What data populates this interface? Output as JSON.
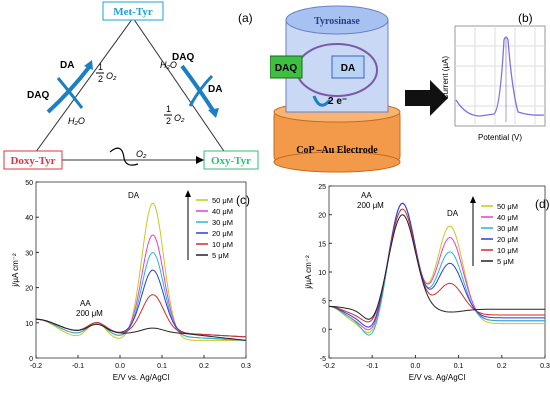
{
  "panel_a": {
    "label": "(a)",
    "met": "Met-Tyr",
    "doxy": "Doxy-Tyr",
    "oxy": "Oxy-Tyr",
    "left_da": "DA",
    "left_daq": "DAQ",
    "left_h2o": "H₂O",
    "right_h2o": "H₂O",
    "right_daq": "DAQ",
    "right_da": "DA",
    "half": "1",
    "half_den": "2",
    "o2": "O₂",
    "bottom_o2": "O₂",
    "colors": {
      "met": "#1aa3d9",
      "doxy": "#e0343d",
      "oxy": "#2bbf73",
      "arrow": "#1b7fc4"
    }
  },
  "panel_b": {
    "label": "(b)",
    "tyrosinase": "Tyrosinase",
    "daq": "DAQ",
    "da": "DA",
    "electrons": "2 e⁻",
    "electrode": "CoP –Au Electrode",
    "ylabel": "Current (μA)",
    "xlabel": "Potential (V)"
  },
  "chart_data": [
    {
      "panel": "(c)",
      "type": "line",
      "xlabel": "E/V vs. Ag/AgCl",
      "ylabel": "j/μA cm⁻²",
      "xlim": [
        -0.2,
        0.3
      ],
      "ylim": [
        0,
        50
      ],
      "xticks": [
        "-0.2",
        "-0.1",
        "0.0",
        "0.1",
        "0.2",
        "0.3"
      ],
      "yticks": [
        "0",
        "10",
        "20",
        "30",
        "40",
        "50"
      ],
      "annotations": {
        "aa": "AA",
        "aa_conc": "200 μM",
        "da": "DA"
      },
      "legend_placement": "right",
      "series": [
        {
          "name": "50 μM",
          "color": "#c9c81e",
          "aa_peak": 10,
          "da_peak": 44,
          "base": 5,
          "end": 5
        },
        {
          "name": "40 μM",
          "color": "#e23de0",
          "aa_peak": 10,
          "da_peak": 35,
          "base": 6,
          "end": 5
        },
        {
          "name": "30 μM",
          "color": "#25b8cc",
          "aa_peak": 10,
          "da_peak": 30,
          "base": 6,
          "end": 5
        },
        {
          "name": "20 μM",
          "color": "#2e3fd0",
          "aa_peak": 10,
          "da_peak": 25,
          "base": 7,
          "end": 6
        },
        {
          "name": "10 μM",
          "color": "#d42a2a",
          "aa_peak": 10,
          "da_peak": 18,
          "base": 7,
          "end": 6
        },
        {
          "name": "5 μM",
          "color": "#222222",
          "aa_peak": 9.5,
          "da_peak": 8.5,
          "base": 7,
          "end": 5
        }
      ]
    },
    {
      "panel": "(d)",
      "type": "line",
      "xlabel": "E/V vs. Ag/AgCl",
      "ylabel": "j/μA cm⁻²",
      "xlim": [
        -0.2,
        0.3
      ],
      "ylim": [
        -5,
        25
      ],
      "xticks": [
        "-0.2",
        "-0.1",
        "0.0",
        "0.1",
        "0.2",
        "0.3"
      ],
      "yticks": [
        "-5",
        "0",
        "5",
        "10",
        "15",
        "20",
        "25"
      ],
      "annotations": {
        "aa": "AA",
        "aa_conc": "200 μM",
        "da": "DA"
      },
      "legend_placement": "right",
      "series": [
        {
          "name": "50 μM",
          "color": "#c9c81e",
          "aa_peak": 22,
          "da_peak": 18,
          "dip": -1.5,
          "end": 1
        },
        {
          "name": "40 μM",
          "color": "#e23de0",
          "aa_peak": 22,
          "da_peak": 16,
          "dip": -1,
          "end": 1.5
        },
        {
          "name": "30 μM",
          "color": "#25b8cc",
          "aa_peak": 22,
          "da_peak": 13.5,
          "dip": -2,
          "end": 1.5
        },
        {
          "name": "20 μM",
          "color": "#2e3fd0",
          "aa_peak": 22,
          "da_peak": 11.5,
          "dip": -0.5,
          "end": 2
        },
        {
          "name": "10 μM",
          "color": "#d42a2a",
          "aa_peak": 21,
          "da_peak": 8,
          "dip": 0.5,
          "end": 2.5
        },
        {
          "name": "5 μM",
          "color": "#222222",
          "aa_peak": 20,
          "da_peak": 3,
          "dip": 1,
          "end": 3.5
        }
      ]
    }
  ]
}
